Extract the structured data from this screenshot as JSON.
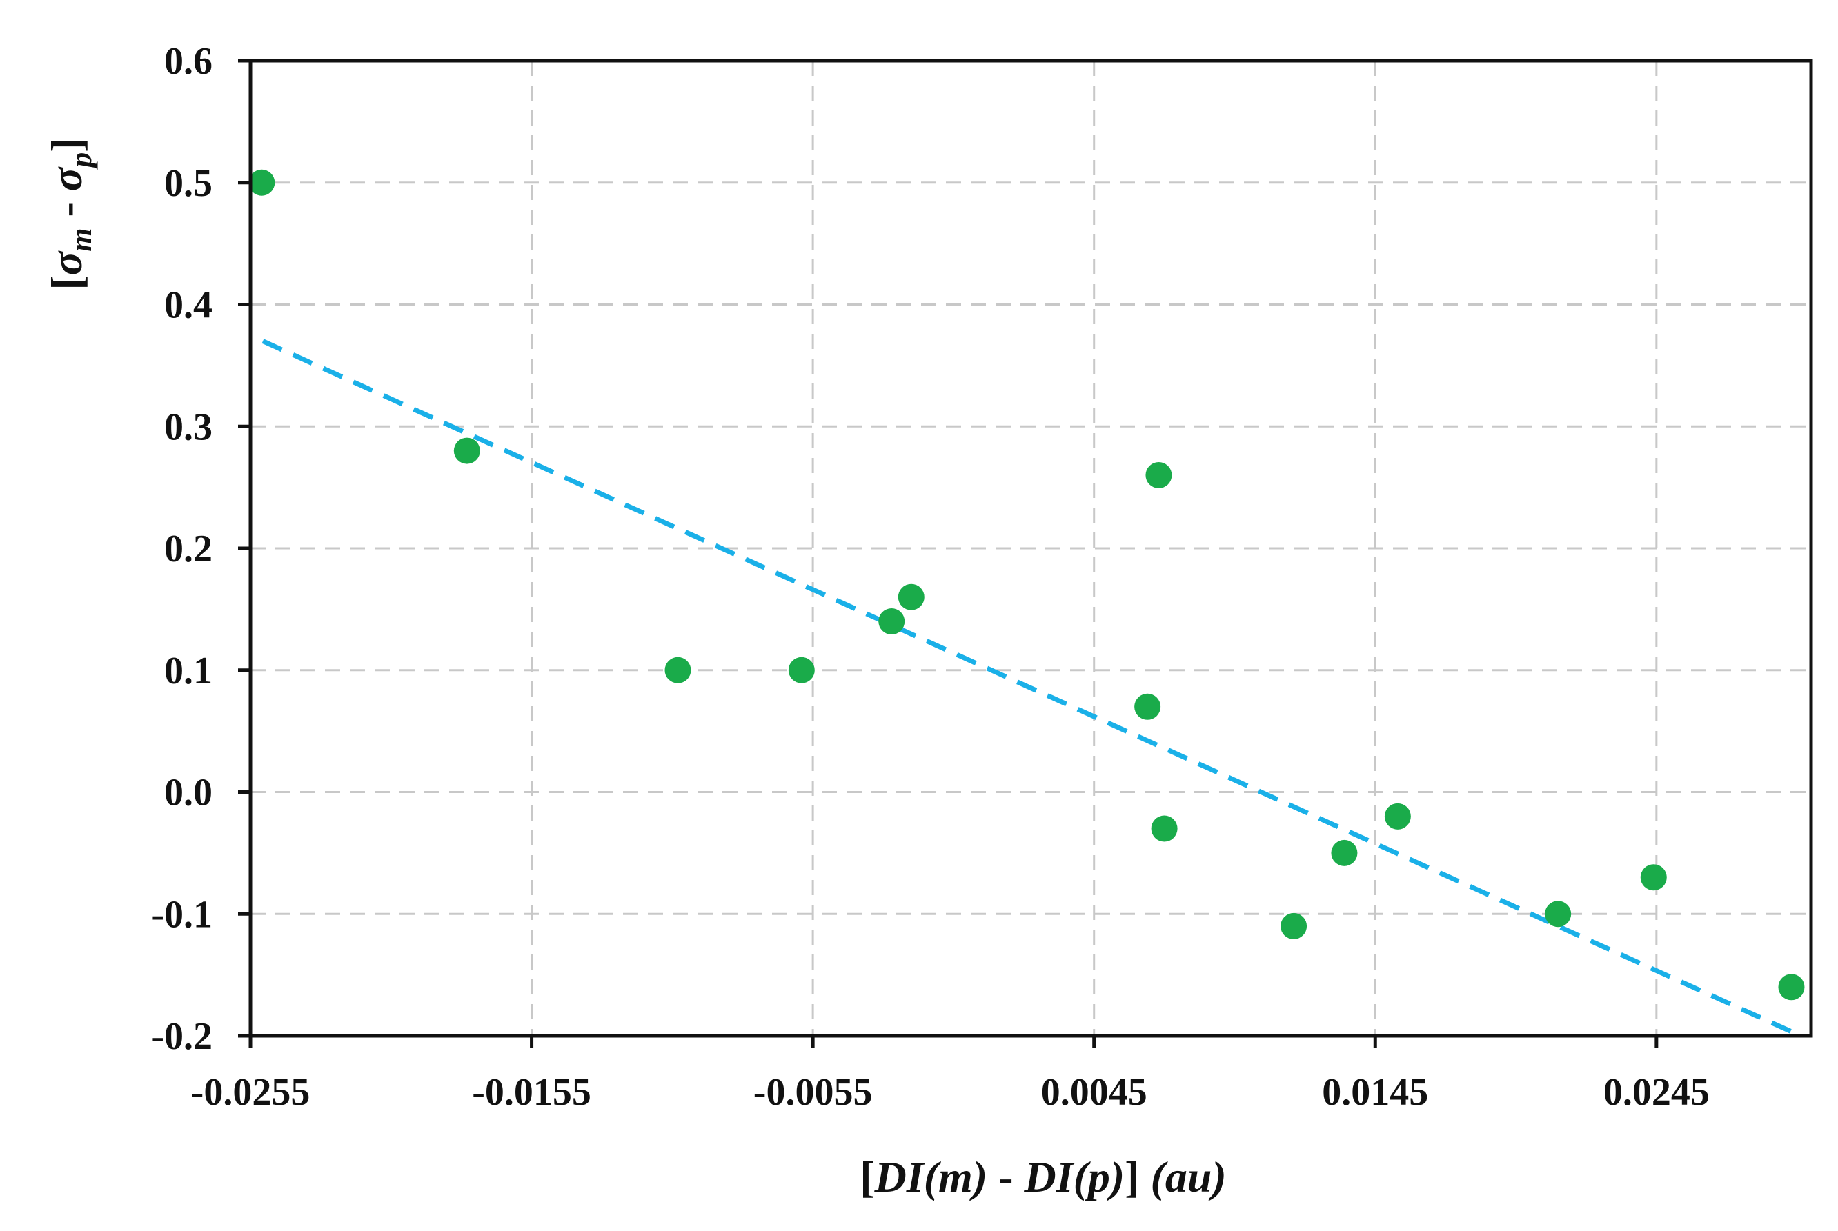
{
  "chart_data": {
    "type": "scatter",
    "title": "",
    "xlabel": {
      "prefix": "[",
      "term1": "DI(m)",
      "separator": " - ",
      "term2": "DI(p)",
      "suffix": "]",
      "units": "(au)"
    },
    "ylabel": {
      "open": "[",
      "sym1": "σ",
      "sub1": "m",
      "separator": " - ",
      "sym2": "σ",
      "sub2": "p",
      "close": "]"
    },
    "xlim": [
      -0.0255,
      0.03
    ],
    "ylim": [
      -0.2,
      0.6
    ],
    "xticks": [
      -0.0255,
      -0.0155,
      -0.0055,
      0.0045,
      0.0145,
      0.0245
    ],
    "xtick_labels": [
      "-0.0255",
      "-0.0155",
      "-0.0055",
      "0.0045",
      "0.0145",
      "0.0245"
    ],
    "yticks": [
      0.6,
      0.5,
      0.4,
      0.3,
      0.2,
      0.1,
      0.0,
      -0.1,
      -0.2
    ],
    "ytick_labels": [
      "0.6",
      "0.5",
      "0.4",
      "0.3",
      "0.2",
      "0.1",
      "0.0",
      "-0.1",
      "-0.2"
    ],
    "grid": true,
    "series": [
      {
        "name": "data",
        "color": "#1aab4a",
        "x": [
          -0.0251,
          -0.0178,
          -0.0103,
          -0.0059,
          -0.0027,
          -0.002,
          0.0064,
          0.0068,
          0.007,
          0.0116,
          0.0134,
          0.0153,
          0.021,
          0.0244,
          0.0293
        ],
        "y": [
          0.5,
          0.28,
          0.1,
          0.1,
          0.14,
          0.16,
          0.07,
          0.26,
          -0.03,
          -0.11,
          -0.05,
          -0.02,
          -0.1,
          -0.07,
          -0.16
        ]
      }
    ],
    "trendline": {
      "color": "#1ab0e8",
      "x": [
        -0.0255,
        0.03
      ],
      "y": [
        0.37,
        -0.2
      ]
    },
    "grid_color": "#c8c8c8",
    "axis_color": "#111111"
  }
}
